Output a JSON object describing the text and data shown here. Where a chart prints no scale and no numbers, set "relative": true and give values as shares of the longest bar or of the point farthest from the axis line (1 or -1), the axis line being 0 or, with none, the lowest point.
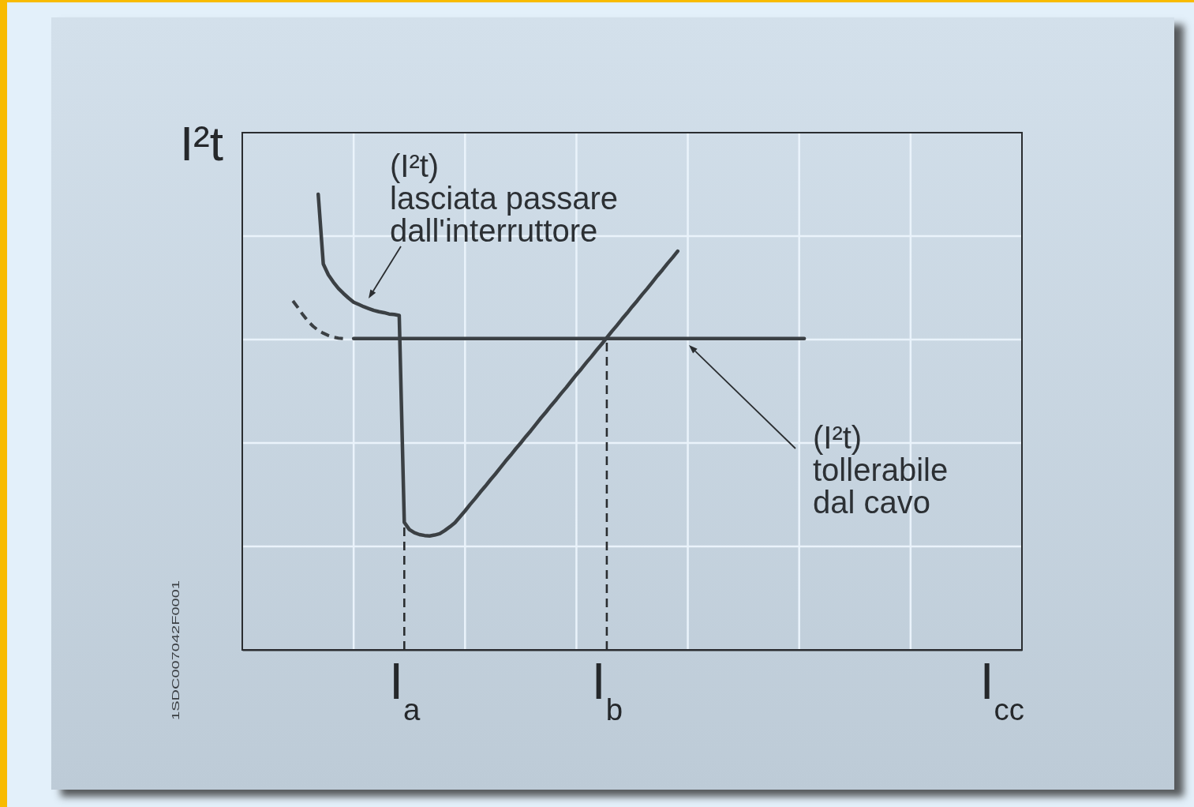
{
  "chart_data": {
    "type": "line",
    "ylabel": "I²t",
    "relative": true,
    "grid": true,
    "tick_labels": "x",
    "categories": [
      null,
      null,
      null,
      null,
      null,
      null,
      null,
      null,
      null,
      null,
      null,
      null,
      null,
      null,
      null,
      null,
      null,
      null,
      null,
      null,
      null,
      null,
      null,
      null,
      null,
      null,
      null,
      null,
      null,
      null,
      null,
      null,
      "I$_{a}$",
      null,
      null,
      null,
      null,
      null,
      null,
      null,
      null,
      null,
      null,
      null,
      null,
      null,
      null,
      null,
      null,
      null,
      null,
      null,
      null,
      null,
      null,
      null,
      null,
      null,
      null,
      null,
      null,
      null,
      null,
      null,
      null,
      null,
      null,
      null,
      null,
      null,
      null,
      null,
      "I$_{b}$",
      null,
      null,
      null,
      null,
      null,
      null,
      null,
      null,
      null,
      null,
      null,
      null,
      null,
      null,
      null,
      null,
      null,
      null,
      null,
      null,
      null,
      null,
      null,
      null,
      null,
      null,
      null,
      null,
      null,
      null,
      null,
      null,
      null,
      null,
      null,
      null,
      null,
      null,
      null,
      null,
      null,
      null,
      null,
      null,
      null,
      null,
      null,
      null,
      null,
      null,
      null,
      null,
      null,
      null,
      null,
      null,
      null,
      null,
      null,
      null,
      null,
      null,
      null,
      null,
      null,
      null,
      null,
      null,
      null,
      null,
      null,
      null,
      null,
      null,
      null,
      null,
      null,
      "I$_{cc}$",
      null,
      null,
      null,
      null
    ],
    "series": [
      {
        "color": "#3b4044",
        "values": [
          null,
          null,
          null,
          null,
          null,
          null,
          null,
          null,
          null,
          null,
          null,
          null,
          null,
          null,
          null,
          1.0,
          0.847,
          0.823,
          0.807,
          0.793,
          0.782,
          0.772,
          0.763,
          0.758,
          0.753,
          0.749,
          0.745,
          0.742,
          0.74,
          0.737,
          0.736,
          0.734,
          0.28,
          0.264,
          0.257,
          0.253,
          0.251,
          0.25,
          0.252,
          0.255,
          0.262,
          0.27,
          0.279,
          0.292,
          0.305,
          0.319,
          0.332,
          0.346,
          0.359,
          0.373,
          0.386,
          0.4,
          0.414,
          0.427,
          0.441,
          0.454,
          0.468,
          0.481,
          0.495,
          0.509,
          0.522,
          0.536,
          0.549,
          0.563,
          0.576,
          0.59,
          0.604,
          0.617,
          0.631,
          0.644,
          0.658,
          0.671,
          0.685,
          0.699,
          0.712,
          0.726,
          0.739,
          0.753,
          0.766,
          0.78,
          0.793,
          0.807,
          0.821,
          0.834,
          0.848,
          0.861,
          0.875,
          null,
          null,
          null,
          null,
          null,
          null,
          null,
          null,
          null,
          null,
          null,
          null,
          null,
          null,
          null,
          null,
          null,
          null,
          null,
          null,
          null,
          null,
          null,
          null,
          null,
          null,
          null,
          null,
          null,
          null,
          null,
          null,
          null,
          null,
          null,
          null,
          null,
          null,
          null,
          null,
          null,
          null,
          null,
          null,
          null,
          null,
          null,
          null,
          null,
          null,
          null,
          null,
          null,
          null,
          null,
          null,
          null,
          null,
          null,
          null,
          null,
          null,
          null,
          null,
          null,
          null,
          null,
          null
        ]
      },
      {
        "color": "#3b4044",
        "line_style": "dashed",
        "values": [
          null,
          null,
          null,
          null,
          null,
          null,
          null,
          null,
          null,
          null,
          0.766,
          0.751,
          0.735,
          0.721,
          0.71,
          0.701,
          0.695,
          0.69,
          0.686,
          0.684,
          0.683,
          null,
          null,
          null,
          null,
          null,
          null,
          null,
          null,
          null,
          null,
          null,
          null,
          null,
          null,
          null,
          null,
          null,
          null,
          null,
          null,
          null,
          null,
          null,
          null,
          null,
          null,
          null,
          null,
          null,
          null,
          null,
          null,
          null,
          null,
          null,
          null,
          null,
          null,
          null,
          null,
          null,
          null,
          null,
          null,
          null,
          null,
          null,
          null,
          null,
          null,
          null,
          null,
          null,
          null,
          null,
          null,
          null,
          null,
          null,
          null,
          null,
          null,
          null,
          null,
          null,
          null,
          null,
          null,
          null,
          null,
          null,
          null,
          null,
          null,
          null,
          null,
          null,
          null,
          null,
          null,
          null,
          null,
          null,
          null,
          null,
          null,
          null,
          null,
          null,
          null,
          null,
          null,
          null,
          null,
          null,
          null,
          null,
          null,
          null,
          null,
          null,
          null,
          null,
          null,
          null,
          null,
          null,
          null,
          null,
          null,
          null,
          null,
          null,
          null,
          null,
          null,
          null,
          null,
          null,
          null,
          null,
          null,
          null,
          null,
          null,
          null,
          null,
          null,
          null,
          null,
          null,
          null,
          null,
          null
        ]
      },
      {
        "color": "#3b4044",
        "values": [
          null,
          null,
          null,
          null,
          null,
          null,
          null,
          null,
          null,
          null,
          null,
          null,
          null,
          null,
          null,
          null,
          null,
          null,
          null,
          null,
          null,
          null,
          0.683,
          0.683,
          0.683,
          0.683,
          0.683,
          0.683,
          0.683,
          0.683,
          0.683,
          0.683,
          0.683,
          0.683,
          0.683,
          0.683,
          0.683,
          0.683,
          0.683,
          0.683,
          0.683,
          0.683,
          0.683,
          0.683,
          0.683,
          0.683,
          0.683,
          0.683,
          0.683,
          0.683,
          0.683,
          0.683,
          0.683,
          0.683,
          0.683,
          0.683,
          0.683,
          0.683,
          0.683,
          0.683,
          0.683,
          0.683,
          0.683,
          0.683,
          0.683,
          0.683,
          0.683,
          0.683,
          0.683,
          0.683,
          0.683,
          0.683,
          0.683,
          0.683,
          0.683,
          0.683,
          0.683,
          0.683,
          0.683,
          0.683,
          0.683,
          0.683,
          0.683,
          0.683,
          0.683,
          0.683,
          0.683,
          0.683,
          0.683,
          0.683,
          0.683,
          0.683,
          0.683,
          0.683,
          0.683,
          0.683,
          0.683,
          0.683,
          0.683,
          0.683,
          0.683,
          0.683,
          0.683,
          0.683,
          0.683,
          0.683,
          0.683,
          0.683,
          0.683,
          0.683,
          0.683,
          0.683,
          null,
          null,
          null,
          null,
          null,
          null,
          null,
          null,
          null,
          null,
          null,
          null,
          null,
          null,
          null,
          null,
          null,
          null,
          null,
          null,
          null,
          null,
          null,
          null,
          null,
          null,
          null,
          null,
          null,
          null,
          null,
          null,
          null,
          null,
          null,
          null,
          null,
          null,
          null,
          null,
          null,
          null,
          null
        ]
      }
    ],
    "ref_lines": [
      {
        "axis": "x",
        "value": "I$_{a}$",
        "line_style": "dashed"
      },
      {
        "axis": "x",
        "value": "I$_{b}$",
        "line_style": "dashed"
      }
    ],
    "annotations": [
      "(I²t)\nlasciata passare\ndall'interruttore",
      "(I²t)\ntollerabile\ndal cavo",
      "1SDC007042F0001"
    ]
  }
}
